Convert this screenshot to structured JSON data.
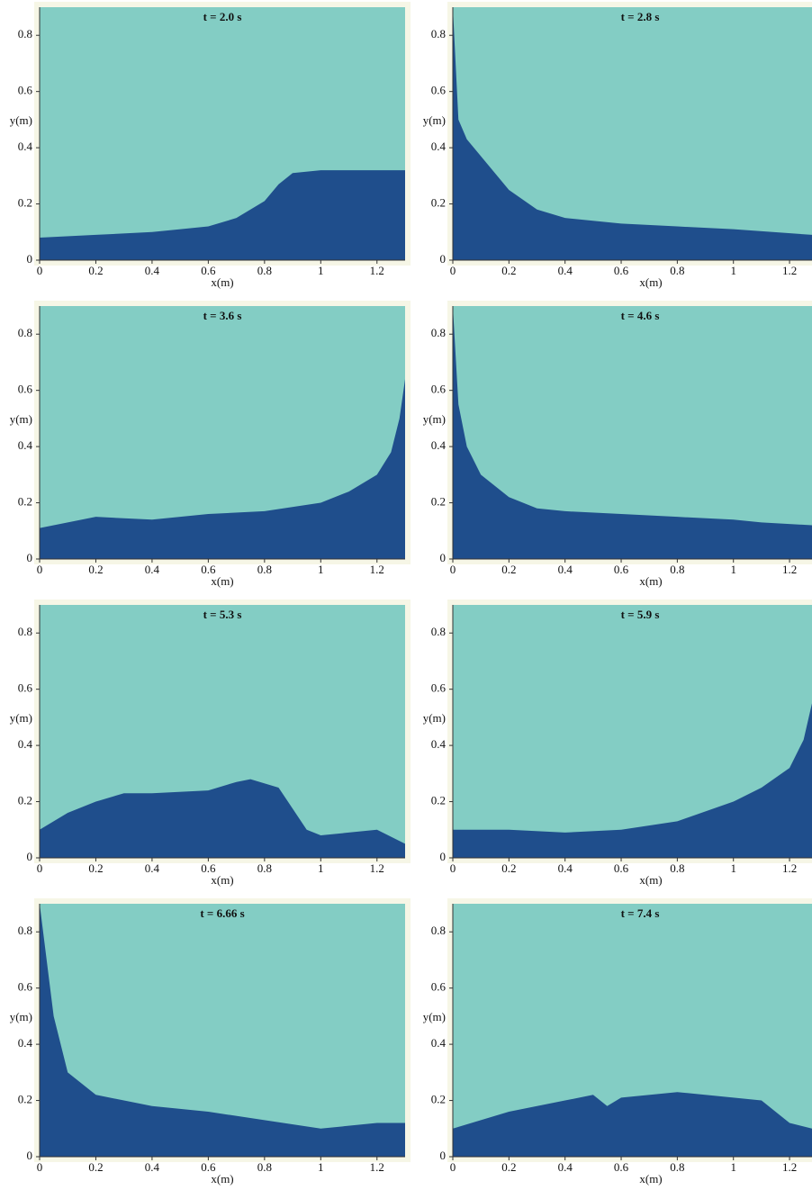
{
  "chart_data": [
    {
      "type": "area",
      "title": "t = 2.0 s",
      "xlabel": "x(m)",
      "ylabel": "y(m)",
      "color": "#1f4e8c",
      "background": "#83cdc4",
      "xlim": [
        0,
        1.3
      ],
      "ylim": [
        0,
        0.9
      ],
      "xticks": [
        0,
        0.2,
        0.4,
        0.6,
        0.8,
        1,
        1.2
      ],
      "yticks": [
        0,
        0.2,
        0.4,
        0.6,
        0.8
      ],
      "x": [
        0,
        0.2,
        0.4,
        0.6,
        0.7,
        0.8,
        0.85,
        0.9,
        1.0,
        1.3
      ],
      "values": [
        0.08,
        0.09,
        0.1,
        0.12,
        0.15,
        0.21,
        0.27,
        0.31,
        0.32,
        0.32
      ]
    },
    {
      "type": "area",
      "title": "t = 2.8 s",
      "xlabel": "x(m)",
      "ylabel": "y(m)",
      "color": "#1f4e8c",
      "background": "#83cdc4",
      "xlim": [
        0,
        1.28
      ],
      "ylim": [
        0,
        0.9
      ],
      "xticks": [
        0,
        0.2,
        0.4,
        0.6,
        0.8,
        1,
        1.2
      ],
      "yticks": [
        0,
        0.2,
        0.4,
        0.6,
        0.8
      ],
      "x": [
        0,
        0.02,
        0.05,
        0.1,
        0.2,
        0.3,
        0.4,
        0.6,
        0.8,
        1.0,
        1.28
      ],
      "values": [
        0.9,
        0.5,
        0.43,
        0.37,
        0.25,
        0.18,
        0.15,
        0.13,
        0.12,
        0.11,
        0.09
      ]
    },
    {
      "type": "area",
      "title": "t = 3.6 s",
      "xlabel": "x(m)",
      "ylabel": "y(m)",
      "color": "#1f4e8c",
      "background": "#83cdc4",
      "xlim": [
        0,
        1.3
      ],
      "ylim": [
        0,
        0.9
      ],
      "xticks": [
        0,
        0.2,
        0.4,
        0.6,
        0.8,
        1,
        1.2
      ],
      "yticks": [
        0,
        0.2,
        0.4,
        0.6,
        0.8
      ],
      "x": [
        0,
        0.2,
        0.4,
        0.6,
        0.8,
        1.0,
        1.1,
        1.2,
        1.25,
        1.28,
        1.3
      ],
      "values": [
        0.11,
        0.15,
        0.14,
        0.16,
        0.17,
        0.2,
        0.24,
        0.3,
        0.38,
        0.5,
        0.64
      ]
    },
    {
      "type": "area",
      "title": "t = 4.6 s",
      "xlabel": "x(m)",
      "ylabel": "y(m)",
      "color": "#1f4e8c",
      "background": "#83cdc4",
      "xlim": [
        0,
        1.28
      ],
      "ylim": [
        0,
        0.9
      ],
      "xticks": [
        0,
        0.2,
        0.4,
        0.6,
        0.8,
        1,
        1.2
      ],
      "yticks": [
        0,
        0.2,
        0.4,
        0.6,
        0.8
      ],
      "x": [
        0,
        0.02,
        0.05,
        0.1,
        0.2,
        0.3,
        0.4,
        0.6,
        0.8,
        1.0,
        1.1,
        1.28
      ],
      "values": [
        0.9,
        0.55,
        0.4,
        0.3,
        0.22,
        0.18,
        0.17,
        0.16,
        0.15,
        0.14,
        0.13,
        0.12
      ]
    },
    {
      "type": "area",
      "title": "t = 5.3 s",
      "xlabel": "x(m)",
      "ylabel": "y(m)",
      "color": "#1f4e8c",
      "background": "#83cdc4",
      "xlim": [
        0,
        1.3
      ],
      "ylim": [
        0,
        0.9
      ],
      "xticks": [
        0,
        0.2,
        0.4,
        0.6,
        0.8,
        1,
        1.2
      ],
      "yticks": [
        0,
        0.2,
        0.4,
        0.6,
        0.8
      ],
      "x": [
        0,
        0.1,
        0.2,
        0.3,
        0.4,
        0.6,
        0.7,
        0.75,
        0.85,
        0.95,
        1.0,
        1.2,
        1.3
      ],
      "values": [
        0.1,
        0.16,
        0.2,
        0.23,
        0.23,
        0.24,
        0.27,
        0.28,
        0.25,
        0.1,
        0.08,
        0.1,
        0.05
      ]
    },
    {
      "type": "area",
      "title": "t = 5.9 s",
      "xlabel": "x(m)",
      "ylabel": "y(m)",
      "color": "#1f4e8c",
      "background": "#83cdc4",
      "xlim": [
        0,
        1.28
      ],
      "ylim": [
        0,
        0.9
      ],
      "xticks": [
        0,
        0.2,
        0.4,
        0.6,
        0.8,
        1,
        1.2
      ],
      "yticks": [
        0,
        0.2,
        0.4,
        0.6,
        0.8
      ],
      "x": [
        0,
        0.2,
        0.4,
        0.6,
        0.8,
        1.0,
        1.1,
        1.2,
        1.25,
        1.28
      ],
      "values": [
        0.1,
        0.1,
        0.09,
        0.1,
        0.13,
        0.2,
        0.25,
        0.32,
        0.42,
        0.55
      ]
    },
    {
      "type": "area",
      "title": "t = 6.66 s",
      "xlabel": "x(m)",
      "ylabel": "y(m)",
      "color": "#1f4e8c",
      "background": "#83cdc4",
      "xlim": [
        0,
        1.3
      ],
      "ylim": [
        0,
        0.9
      ],
      "xticks": [
        0,
        0.2,
        0.4,
        0.6,
        0.8,
        1,
        1.2
      ],
      "yticks": [
        0,
        0.2,
        0.4,
        0.6,
        0.8
      ],
      "x": [
        0,
        0.05,
        0.1,
        0.2,
        0.3,
        0.4,
        0.6,
        0.8,
        1.0,
        1.2,
        1.3
      ],
      "values": [
        0.9,
        0.5,
        0.3,
        0.22,
        0.2,
        0.18,
        0.16,
        0.13,
        0.1,
        0.12,
        0.12
      ]
    },
    {
      "type": "area",
      "title": "t = 7.4 s",
      "xlabel": "x(m)",
      "ylabel": "y(m)",
      "color": "#1f4e8c",
      "background": "#83cdc4",
      "xlim": [
        0,
        1.28
      ],
      "ylim": [
        0,
        0.9
      ],
      "xticks": [
        0,
        0.2,
        0.4,
        0.6,
        0.8,
        1,
        1.2
      ],
      "yticks": [
        0,
        0.2,
        0.4,
        0.6,
        0.8
      ],
      "x": [
        0,
        0.2,
        0.4,
        0.5,
        0.55,
        0.6,
        0.8,
        1.0,
        1.1,
        1.2,
        1.28
      ],
      "values": [
        0.1,
        0.16,
        0.2,
        0.22,
        0.18,
        0.21,
        0.23,
        0.21,
        0.2,
        0.12,
        0.1
      ]
    }
  ]
}
